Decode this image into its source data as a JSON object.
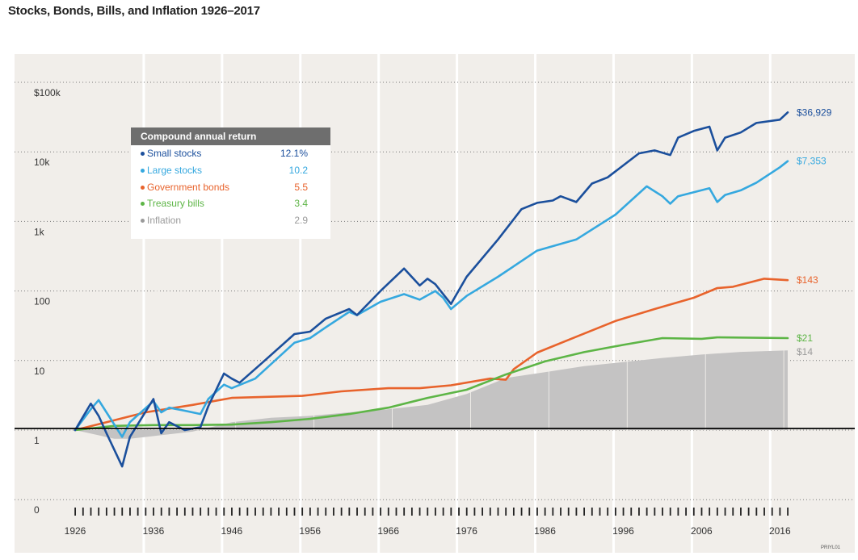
{
  "title": "Stocks, Bonds, Bills, and Inflation 1926–2017",
  "code": "PRIYL01",
  "legend": {
    "header": "Compound annual return",
    "items": [
      {
        "name": "Small stocks",
        "value": "12.1%",
        "color": "#1b4f9c"
      },
      {
        "name": "Large stocks",
        "value": "10.2",
        "color": "#35a8df"
      },
      {
        "name": "Government bonds",
        "value": "5.5",
        "color": "#e8632c"
      },
      {
        "name": "Treasury bills",
        "value": "3.4",
        "color": "#5db546"
      },
      {
        "name": "Inflation",
        "value": "2.9",
        "color": "#9a9a9a"
      }
    ]
  },
  "chart_data": {
    "type": "line",
    "title": "Stocks, Bonds, Bills, and Inflation 1926–2017",
    "y_scale": "log",
    "ylim": [
      0.1,
      100000
    ],
    "y_tick_labels": [
      "$100k",
      "10k",
      "1k",
      "100",
      "10",
      "1",
      "0"
    ],
    "y_tick_values": [
      100000,
      10000,
      1000,
      100,
      10,
      1,
      0.1
    ],
    "x_tick_labels": [
      "1926",
      "1936",
      "1946",
      "1956",
      "1966",
      "1976",
      "1986",
      "1996",
      "2006",
      "2016"
    ],
    "x_tick_values": [
      1926,
      1936,
      1946,
      1956,
      1966,
      1976,
      1986,
      1996,
      2006,
      2016
    ],
    "xlim": [
      1926,
      2017
    ],
    "baseline": 1,
    "series": [
      {
        "name": "Small stocks",
        "color": "#1b4f9c",
        "end_label": "$36,929",
        "x": [
          1926,
          1928,
          1929,
          1930,
          1932,
          1933,
          1936,
          1937,
          1938,
          1940,
          1942,
          1943,
          1945,
          1946,
          1947,
          1950,
          1954,
          1956,
          1958,
          1961,
          1962,
          1965,
          1968,
          1970,
          1971,
          1972,
          1974,
          1976,
          1980,
          1983,
          1985,
          1987,
          1988,
          1990,
          1992,
          1994,
          1998,
          2000,
          2002,
          2003,
          2005,
          2007,
          2008,
          2009,
          2011,
          2013,
          2016,
          2017
        ],
        "values": [
          1,
          2.4,
          1.6,
          0.9,
          0.3,
          0.8,
          2.8,
          0.9,
          1.3,
          1,
          1.1,
          2.2,
          6.5,
          5.5,
          4.8,
          9.5,
          24,
          26,
          40,
          55,
          45,
          100,
          210,
          120,
          150,
          125,
          65,
          160,
          550,
          1500,
          1850,
          2000,
          2300,
          1900,
          3500,
          4300,
          9500,
          10500,
          9000,
          16000,
          20000,
          23000,
          10500,
          16000,
          19000,
          26000,
          29000,
          36929
        ]
      },
      {
        "name": "Large stocks",
        "color": "#35a8df",
        "end_label": "$7,353",
        "x": [
          1926,
          1928,
          1929,
          1930,
          1932,
          1933,
          1936,
          1937,
          1938,
          1940,
          1942,
          1943,
          1945,
          1946,
          1949,
          1954,
          1956,
          1958,
          1961,
          1962,
          1965,
          1968,
          1970,
          1972,
          1973,
          1974,
          1976,
          1980,
          1985,
          1990,
          1995,
          1999,
          2001,
          2002,
          2003,
          2007,
          2008,
          2009,
          2011,
          2013,
          2016,
          2017
        ],
        "values": [
          1,
          2,
          2.7,
          1.8,
          0.8,
          1.3,
          2.6,
          1.8,
          2.1,
          1.9,
          1.7,
          2.8,
          4.5,
          4,
          5.5,
          18,
          21,
          30,
          50,
          45,
          70,
          90,
          75,
          100,
          80,
          55,
          85,
          160,
          380,
          550,
          1250,
          3200,
          2300,
          1800,
          2300,
          3000,
          1900,
          2400,
          2800,
          3600,
          6000,
          7353
        ]
      },
      {
        "name": "Government bonds",
        "color": "#e8632c",
        "end_label": "$143",
        "x": [
          1926,
          1930,
          1935,
          1941,
          1946,
          1950,
          1955,
          1960,
          1966,
          1970,
          1974,
          1979,
          1981,
          1982,
          1985,
          1990,
          1995,
          2000,
          2005,
          2008,
          2010,
          2014,
          2017
        ],
        "values": [
          1,
          1.3,
          1.8,
          2.3,
          2.9,
          3,
          3.1,
          3.6,
          4,
          4,
          4.4,
          5.5,
          5.3,
          7.5,
          13,
          22,
          37,
          55,
          80,
          110,
          115,
          150,
          143
        ]
      },
      {
        "name": "Treasury bills",
        "color": "#5db546",
        "end_label": "$21",
        "x": [
          1926,
          1931,
          1936,
          1941,
          1946,
          1951,
          1956,
          1961,
          1966,
          1971,
          1976,
          1981,
          1986,
          1991,
          1996,
          2001,
          2006,
          2008,
          2017
        ],
        "values": [
          1,
          1.15,
          1.18,
          1.18,
          1.2,
          1.3,
          1.45,
          1.7,
          2.1,
          2.9,
          3.8,
          6.3,
          9.7,
          13.2,
          16.8,
          21,
          20.5,
          21.5,
          21
        ]
      },
      {
        "name": "Inflation",
        "color": "#c4c3c3",
        "end_label": "$14",
        "x": [
          1926,
          1931,
          1933,
          1941,
          1946,
          1951,
          1956,
          1961,
          1966,
          1971,
          1976,
          1981,
          1986,
          1991,
          1996,
          2001,
          2006,
          2011,
          2017
        ],
        "values": [
          1,
          0.75,
          0.75,
          0.95,
          1.3,
          1.5,
          1.6,
          1.8,
          2,
          2.3,
          3.3,
          5.6,
          6.8,
          8.3,
          9.5,
          10.9,
          12.2,
          13.3,
          14
        ]
      }
    ]
  }
}
